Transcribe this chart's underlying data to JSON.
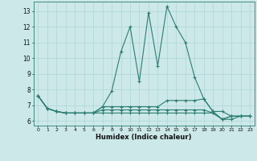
{
  "xlabel": "Humidex (Indice chaleur)",
  "x": [
    0,
    1,
    2,
    3,
    4,
    5,
    6,
    7,
    8,
    9,
    10,
    11,
    12,
    13,
    14,
    15,
    16,
    17,
    18,
    19,
    20,
    21,
    22,
    23
  ],
  "series": [
    [
      7.6,
      6.8,
      6.6,
      6.5,
      6.5,
      6.5,
      6.5,
      6.9,
      7.9,
      10.4,
      12.0,
      8.5,
      12.9,
      9.5,
      13.3,
      12.0,
      11.0,
      8.8,
      7.4,
      6.6,
      6.1,
      6.3,
      6.3,
      6.3
    ],
    [
      7.6,
      6.8,
      6.6,
      6.5,
      6.5,
      6.5,
      6.5,
      6.9,
      6.9,
      6.9,
      6.9,
      6.9,
      6.9,
      6.9,
      7.3,
      7.3,
      7.3,
      7.3,
      7.4,
      6.6,
      6.6,
      6.3,
      6.3,
      6.3
    ],
    [
      7.6,
      6.8,
      6.6,
      6.5,
      6.5,
      6.5,
      6.5,
      6.7,
      6.7,
      6.7,
      6.7,
      6.7,
      6.7,
      6.7,
      6.7,
      6.7,
      6.7,
      6.7,
      6.7,
      6.5,
      6.1,
      6.3,
      6.3,
      6.3
    ],
    [
      7.6,
      6.8,
      6.6,
      6.5,
      6.5,
      6.5,
      6.5,
      6.5,
      6.5,
      6.5,
      6.5,
      6.5,
      6.5,
      6.5,
      6.5,
      6.5,
      6.5,
      6.5,
      6.5,
      6.5,
      6.1,
      6.1,
      6.3,
      6.3
    ]
  ],
  "color": "#2e7d72",
  "bg_color": "#cce8e8",
  "grid_color": "#afd4d4",
  "ylim": [
    5.7,
    13.6
  ],
  "xlim": [
    -0.5,
    23.5
  ],
  "yticks": [
    6,
    7,
    8,
    9,
    10,
    11,
    12,
    13
  ],
  "xtick_labels": [
    "0",
    "1",
    "2",
    "3",
    "4",
    "5",
    "6",
    "7",
    "8",
    "9",
    "10",
    "11",
    "12",
    "13",
    "14",
    "15",
    "16",
    "17",
    "18",
    "19",
    "20",
    "21",
    "22",
    "23"
  ]
}
